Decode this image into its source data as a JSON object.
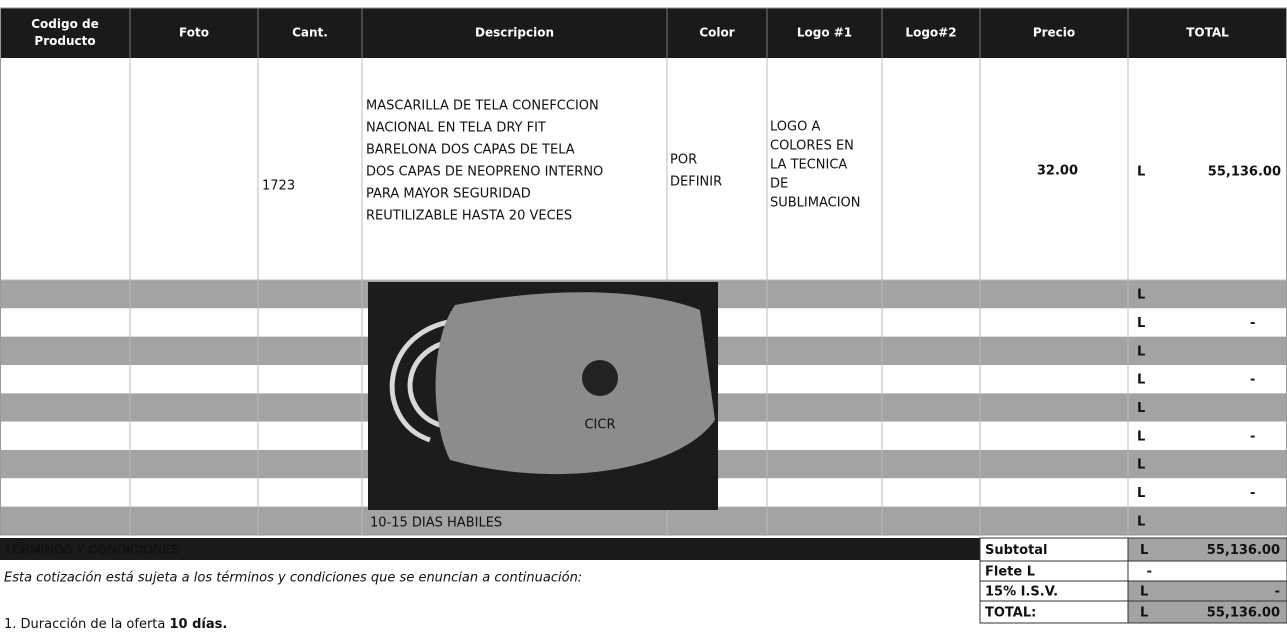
{
  "table": {
    "headers": [
      "Codigo de Producto",
      "Foto",
      "Cant.",
      "Descripcion",
      "Color",
      "Logo #1",
      "Logo#2",
      "Precio",
      "TOTAL"
    ],
    "item": {
      "quantity": "1723",
      "description_lines": [
        "MASCARILLA DE TELA CONEFCCION",
        "NACIONAL  EN TELA DRY  FIT",
        "BARELONA  DOS  CAPAS  DE TELA",
        "DOS  CAPAS DE  NEOPRENO  INTERNO",
        "PARA MAYOR  SEGURIDAD",
        "REUTILIZABLE  HASTA  20 VECES"
      ],
      "color_lines": [
        "POR",
        "DEFINIR"
      ],
      "logo1_lines": [
        "LOGO A",
        "COLORES EN",
        "LA TECNICA",
        "DE",
        "SUBLIMACION"
      ],
      "price": "32.00",
      "currency": "L",
      "total": "55,136.00"
    },
    "blank_rows": [
      {
        "currency": "L"
      },
      {
        "currency": "L",
        "amount": "-"
      },
      {
        "currency": "L"
      },
      {
        "currency": "L",
        "amount": "-"
      },
      {
        "currency": "L"
      },
      {
        "currency": "L",
        "amount": "-"
      },
      {
        "currency": "L"
      },
      {
        "currency": "L",
        "amount": "-"
      },
      {
        "currency": "L"
      }
    ],
    "photo_text": "CICR",
    "delivery_note": "10-15 DIAS  HABILES"
  },
  "terms": {
    "title": "TÉRMINOS Y CONDICIONES",
    "intro": "Esta cotización está sujeta a los términos y condiciones que se enuncian a continuación:",
    "items": [
      {
        "text": "1. Duracción de la oferta ",
        "bold": "10 días."
      }
    ]
  },
  "summary": [
    {
      "label": "Subtotal",
      "currency": "L",
      "amount": "55,136.00"
    },
    {
      "label": "Flete L",
      "amount": "-"
    },
    {
      "label": "15% I.S.V.",
      "currency": "L",
      "amount": "-"
    },
    {
      "label": "TOTAL:",
      "currency": "L",
      "amount": "55,136.00"
    }
  ]
}
